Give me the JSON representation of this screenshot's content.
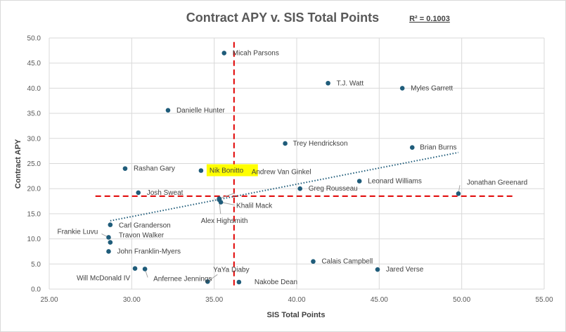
{
  "chart_data": {
    "type": "scatter",
    "title": "Contract APY v. SIS Total Points",
    "annotation": "R² = 0.1003",
    "xlabel": "SIS Total Points",
    "ylabel": "Contract APY",
    "xlim": [
      25,
      55
    ],
    "ylim": [
      0,
      50
    ],
    "xticks": [
      "25.00",
      "30.00",
      "35.00",
      "40.00",
      "45.00",
      "50.00",
      "55.00"
    ],
    "yticks": [
      "0.0",
      "5.0",
      "10.0",
      "15.0",
      "20.0",
      "25.0",
      "30.0",
      "35.0",
      "40.0",
      "45.0",
      "50.0"
    ],
    "grid": true,
    "marker_color": "#1f5c7a",
    "highlight_color": "#ffff00",
    "points": [
      {
        "name": "Micah Parsons",
        "x": 35.6,
        "y": 47.0
      },
      {
        "name": "T.J. Watt",
        "x": 41.9,
        "y": 41.0
      },
      {
        "name": "Myles Garrett",
        "x": 46.4,
        "y": 40.0
      },
      {
        "name": "Danielle Hunter",
        "x": 32.2,
        "y": 35.6
      },
      {
        "name": "Trey Hendrickson",
        "x": 39.3,
        "y": 29.0
      },
      {
        "name": "Brian Burns",
        "x": 47.0,
        "y": 28.2
      },
      {
        "name": "Rashan Gary",
        "x": 29.6,
        "y": 24.0
      },
      {
        "name": "Nik Bonitto",
        "x": 34.2,
        "y": 23.6,
        "highlight": true
      },
      {
        "name": "Andrew Van Ginkel",
        "x": 35.3,
        "y": 18.0
      },
      {
        "name": "Leonard Williams",
        "x": 43.8,
        "y": 21.5
      },
      {
        "name": "Jonathan Greenard",
        "x": 49.8,
        "y": 19.0
      },
      {
        "name": "Greg Rousseau",
        "x": 40.2,
        "y": 20.0
      },
      {
        "name": "Josh Sweat",
        "x": 30.4,
        "y": 19.2
      },
      {
        "name": "Khalil Mack",
        "x": 35.4,
        "y": 17.3
      },
      {
        "name": "Alex Highsmith",
        "x": 35.3,
        "y": 17.8
      },
      {
        "name": "Carl Granderson",
        "x": 28.7,
        "y": 12.8
      },
      {
        "name": "Frankie Luvu",
        "x": 28.6,
        "y": 10.3
      },
      {
        "name": "Travon Walker",
        "x": 28.7,
        "y": 9.3
      },
      {
        "name": "John Franklin-Myers",
        "x": 28.6,
        "y": 7.5
      },
      {
        "name": "Calais Campbell",
        "x": 41.0,
        "y": 5.5
      },
      {
        "name": "Jared Verse",
        "x": 44.9,
        "y": 3.9
      },
      {
        "name": "Will McDonald IV",
        "x": 30.2,
        "y": 4.1
      },
      {
        "name": "Anfernee Jennings",
        "x": 30.8,
        "y": 4.0
      },
      {
        "name": "YaYa Diaby",
        "x": 34.6,
        "y": 1.5
      },
      {
        "name": "Nakobe Dean",
        "x": 36.5,
        "y": 1.4
      }
    ],
    "trendline": {
      "x": [
        28.7,
        49.8
      ],
      "y": [
        13.6,
        27.2
      ],
      "color": "#1f5c7a",
      "style": "dotted"
    },
    "reference_lines": [
      {
        "orientation": "vertical",
        "value": 36.2,
        "color": "#e00000",
        "style": "dashed"
      },
      {
        "orientation": "horizontal",
        "value": 18.5,
        "x_from": 27.8,
        "x_to": 53.2,
        "color": "#e00000",
        "style": "dashed"
      }
    ]
  }
}
